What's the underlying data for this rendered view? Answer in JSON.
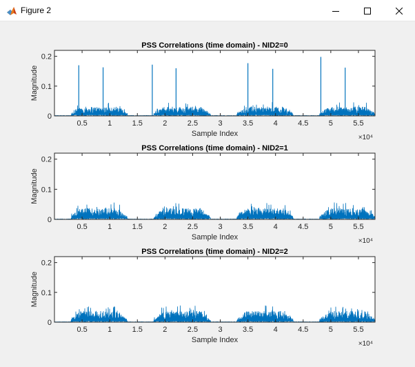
{
  "window": {
    "title": "Figure 2"
  },
  "colors": {
    "series": "#0072bd",
    "axes_bg": "#ffffff",
    "figure_bg": "#f0f0f0"
  },
  "icons": {
    "app": "matlab-icon",
    "minimize": "minimize-icon",
    "maximize": "maximize-icon",
    "close": "close-icon"
  },
  "chart_data": [
    {
      "type": "line",
      "title": "PSS Correlations (time domain) - NID2=0",
      "xlabel": "Sample Index",
      "ylabel": "Magnitude",
      "xlim": [
        0,
        58000
      ],
      "ylim": [
        0,
        0.22
      ],
      "x_exponent": "×10⁴",
      "xticks": [
        5000,
        10000,
        15000,
        20000,
        25000,
        30000,
        35000,
        40000,
        45000,
        50000,
        55000
      ],
      "xtick_labels": [
        "0.5",
        "1",
        "1.5",
        "2",
        "2.5",
        "3",
        "3.5",
        "4",
        "4.5",
        "5",
        "5.5"
      ],
      "yticks": [
        0,
        0.1,
        0.2
      ],
      "ytick_labels": [
        "0",
        "0.1",
        "0.2"
      ],
      "grid": false,
      "active_regions": [
        [
          3000,
          13200
        ],
        [
          18000,
          28200
        ],
        [
          33000,
          43200
        ],
        [
          48000,
          58000
        ]
      ],
      "noise_level_approx": 0.025,
      "peaks": [
        {
          "x": 4400,
          "y": 0.17
        },
        {
          "x": 8800,
          "y": 0.163
        },
        {
          "x": 17700,
          "y": 0.172
        },
        {
          "x": 22000,
          "y": 0.16
        },
        {
          "x": 35000,
          "y": 0.177
        },
        {
          "x": 39500,
          "y": 0.158
        },
        {
          "x": 48200,
          "y": 0.198
        },
        {
          "x": 52600,
          "y": 0.162
        }
      ]
    },
    {
      "type": "line",
      "title": "PSS Correlations (time domain) - NID2=1",
      "xlabel": "Sample Index",
      "ylabel": "Magnitude",
      "xlim": [
        0,
        58000
      ],
      "ylim": [
        0,
        0.22
      ],
      "x_exponent": "×10⁴",
      "xticks": [
        5000,
        10000,
        15000,
        20000,
        25000,
        30000,
        35000,
        40000,
        45000,
        50000,
        55000
      ],
      "xtick_labels": [
        "0.5",
        "1",
        "1.5",
        "2",
        "2.5",
        "3",
        "3.5",
        "4",
        "4.5",
        "5",
        "5.5"
      ],
      "yticks": [
        0,
        0.1,
        0.2
      ],
      "ytick_labels": [
        "0",
        "0.1",
        "0.2"
      ],
      "grid": false,
      "active_regions": [
        [
          3000,
          13200
        ],
        [
          18000,
          28200
        ],
        [
          33000,
          43200
        ],
        [
          48000,
          58000
        ]
      ],
      "noise_level_approx": 0.03,
      "peaks": []
    },
    {
      "type": "line",
      "title": "PSS Correlations (time domain) - NID2=2",
      "xlabel": "Sample Index",
      "ylabel": "Magnitude",
      "xlim": [
        0,
        58000
      ],
      "ylim": [
        0,
        0.22
      ],
      "x_exponent": "×10⁴",
      "xticks": [
        5000,
        10000,
        15000,
        20000,
        25000,
        30000,
        35000,
        40000,
        45000,
        50000,
        55000
      ],
      "xtick_labels": [
        "0.5",
        "1",
        "1.5",
        "2",
        "2.5",
        "3",
        "3.5",
        "4",
        "4.5",
        "5",
        "5.5"
      ],
      "yticks": [
        0,
        0.1,
        0.2
      ],
      "ytick_labels": [
        "0",
        "0.1",
        "0.2"
      ],
      "grid": false,
      "active_regions": [
        [
          3000,
          13200
        ],
        [
          18000,
          28200
        ],
        [
          33000,
          43200
        ],
        [
          48000,
          58000
        ]
      ],
      "noise_level_approx": 0.03,
      "peaks": []
    }
  ]
}
